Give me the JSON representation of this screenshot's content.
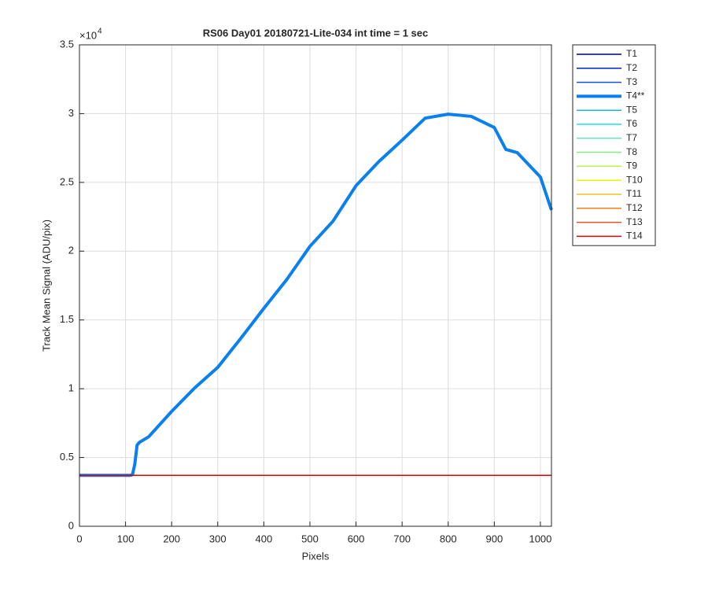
{
  "chart_data": {
    "type": "line",
    "title": "RS06 Day01 20180721-Lite-034 int time = 1 sec",
    "x_label": "Pixels",
    "y_label": "Track Mean Signal (ADU/pix)",
    "y_exponent_base": "×10",
    "y_exponent": "4",
    "grid": true,
    "legend": "outside-right",
    "xlim": [
      0,
      1024
    ],
    "xticks": [
      0,
      100,
      200,
      300,
      400,
      500,
      600,
      700,
      800,
      900,
      1000
    ],
    "ylim": [
      0,
      35000
    ],
    "yticks": [
      {
        "value": 0,
        "label": "0"
      },
      {
        "value": 5000,
        "label": "0.5"
      },
      {
        "value": 10000,
        "label": "1"
      },
      {
        "value": 15000,
        "label": "1.5"
      },
      {
        "value": 20000,
        "label": "2"
      },
      {
        "value": 25000,
        "label": "2.5"
      },
      {
        "value": 30000,
        "label": "3"
      },
      {
        "value": 35000,
        "label": "3.5"
      }
    ],
    "x": [
      0,
      50,
      100,
      110,
      115,
      120,
      125,
      130,
      150,
      200,
      250,
      300,
      350,
      400,
      450,
      500,
      550,
      600,
      650,
      700,
      750,
      800,
      850,
      900,
      925,
      950,
      1000,
      1024
    ],
    "series": [
      {
        "name": "T1",
        "color": "#00007f",
        "line_width": 1.5,
        "values": [
          3700,
          3700,
          3700,
          3700,
          3700,
          3700,
          3700,
          3700,
          3700,
          3700,
          3700,
          3700,
          3700,
          3700,
          3700,
          3700,
          3700,
          3700,
          3700,
          3700,
          3700,
          3700,
          3700,
          3700,
          3700,
          3700,
          3700,
          3700
        ]
      },
      {
        "name": "T2",
        "color": "#0020c0",
        "line_width": 1.5,
        "values": [
          3700,
          3700,
          3700,
          3700,
          3700,
          3700,
          3700,
          3700,
          3700,
          3700,
          3700,
          3700,
          3700,
          3700,
          3700,
          3700,
          3700,
          3700,
          3700,
          3700,
          3700,
          3700,
          3700,
          3700,
          3700,
          3700,
          3700,
          3700
        ]
      },
      {
        "name": "T3",
        "color": "#1a50d8",
        "line_width": 1.5,
        "values": [
          3700,
          3700,
          3700,
          3700,
          3700,
          3700,
          3700,
          3700,
          3700,
          3700,
          3700,
          3700,
          3700,
          3700,
          3700,
          3700,
          3700,
          3700,
          3700,
          3700,
          3700,
          3700,
          3700,
          3700,
          3700,
          3700,
          3700,
          3700
        ]
      },
      {
        "name": "T4**",
        "color": "#0a80f0",
        "line_width": 4,
        "values": [
          3700,
          3700,
          3700,
          3700,
          3750,
          4500,
          5900,
          6100,
          6500,
          8350,
          10060,
          11550,
          13660,
          15840,
          17950,
          20350,
          22180,
          24760,
          26530,
          28070,
          29670,
          29960,
          29800,
          28990,
          27400,
          27160,
          25390,
          22990
        ]
      },
      {
        "name": "T5",
        "color": "#1ab8e8",
        "line_width": 1.5,
        "values": [
          3700,
          3700,
          3700,
          3700,
          3700,
          3700,
          3700,
          3700,
          3700,
          3700,
          3700,
          3700,
          3700,
          3700,
          3700,
          3700,
          3700,
          3700,
          3700,
          3700,
          3700,
          3700,
          3700,
          3700,
          3700,
          3700,
          3700,
          3700
        ]
      },
      {
        "name": "T6",
        "color": "#22e0e0",
        "line_width": 1.5,
        "values": [
          3700,
          3700,
          3700,
          3700,
          3700,
          3700,
          3700,
          3700,
          3700,
          3700,
          3700,
          3700,
          3700,
          3700,
          3700,
          3700,
          3700,
          3700,
          3700,
          3700,
          3700,
          3700,
          3700,
          3700,
          3700,
          3700,
          3700,
          3700
        ]
      },
      {
        "name": "T7",
        "color": "#60e8c0",
        "line_width": 1.5,
        "values": [
          3700,
          3700,
          3700,
          3700,
          3700,
          3700,
          3700,
          3700,
          3700,
          3700,
          3700,
          3700,
          3700,
          3700,
          3700,
          3700,
          3700,
          3700,
          3700,
          3700,
          3700,
          3700,
          3700,
          3700,
          3700,
          3700,
          3700,
          3700
        ]
      },
      {
        "name": "T8",
        "color": "#80f080",
        "line_width": 1.5,
        "values": [
          3700,
          3700,
          3700,
          3700,
          3700,
          3700,
          3700,
          3700,
          3700,
          3700,
          3700,
          3700,
          3700,
          3700,
          3700,
          3700,
          3700,
          3700,
          3700,
          3700,
          3700,
          3700,
          3700,
          3700,
          3700,
          3700,
          3700,
          3700
        ]
      },
      {
        "name": "T9",
        "color": "#b4f050",
        "line_width": 1.5,
        "values": [
          3700,
          3700,
          3700,
          3700,
          3700,
          3700,
          3700,
          3700,
          3700,
          3700,
          3700,
          3700,
          3700,
          3700,
          3700,
          3700,
          3700,
          3700,
          3700,
          3700,
          3700,
          3700,
          3700,
          3700,
          3700,
          3700,
          3700,
          3700
        ]
      },
      {
        "name": "T10",
        "color": "#f0f000",
        "line_width": 1.5,
        "values": [
          3700,
          3700,
          3700,
          3700,
          3700,
          3700,
          3700,
          3700,
          3700,
          3700,
          3700,
          3700,
          3700,
          3700,
          3700,
          3700,
          3700,
          3700,
          3700,
          3700,
          3700,
          3700,
          3700,
          3700,
          3700,
          3700,
          3700,
          3700
        ]
      },
      {
        "name": "T11",
        "color": "#f0c020",
        "line_width": 1.5,
        "values": [
          3700,
          3700,
          3700,
          3700,
          3700,
          3700,
          3700,
          3700,
          3700,
          3700,
          3700,
          3700,
          3700,
          3700,
          3700,
          3700,
          3700,
          3700,
          3700,
          3700,
          3700,
          3700,
          3700,
          3700,
          3700,
          3700,
          3700,
          3700
        ]
      },
      {
        "name": "T12",
        "color": "#f08010",
        "line_width": 1.5,
        "values": [
          3700,
          3700,
          3700,
          3700,
          3700,
          3700,
          3700,
          3700,
          3700,
          3700,
          3700,
          3700,
          3700,
          3700,
          3700,
          3700,
          3700,
          3700,
          3700,
          3700,
          3700,
          3700,
          3700,
          3700,
          3700,
          3700,
          3700,
          3700
        ]
      },
      {
        "name": "T13",
        "color": "#f05020",
        "line_width": 1.5,
        "values": [
          3700,
          3700,
          3700,
          3700,
          3700,
          3700,
          3700,
          3700,
          3700,
          3700,
          3700,
          3700,
          3700,
          3700,
          3700,
          3700,
          3700,
          3700,
          3700,
          3700,
          3700,
          3700,
          3700,
          3700,
          3700,
          3700,
          3700,
          3700
        ]
      },
      {
        "name": "T14",
        "color": "#e00000",
        "line_width": 1.5,
        "values": [
          3700,
          3700,
          3700,
          3700,
          3700,
          3700,
          3700,
          3700,
          3700,
          3700,
          3700,
          3700,
          3700,
          3700,
          3700,
          3700,
          3700,
          3700,
          3700,
          3700,
          3700,
          3700,
          3700,
          3700,
          3700,
          3700,
          3700,
          3700
        ]
      }
    ]
  }
}
